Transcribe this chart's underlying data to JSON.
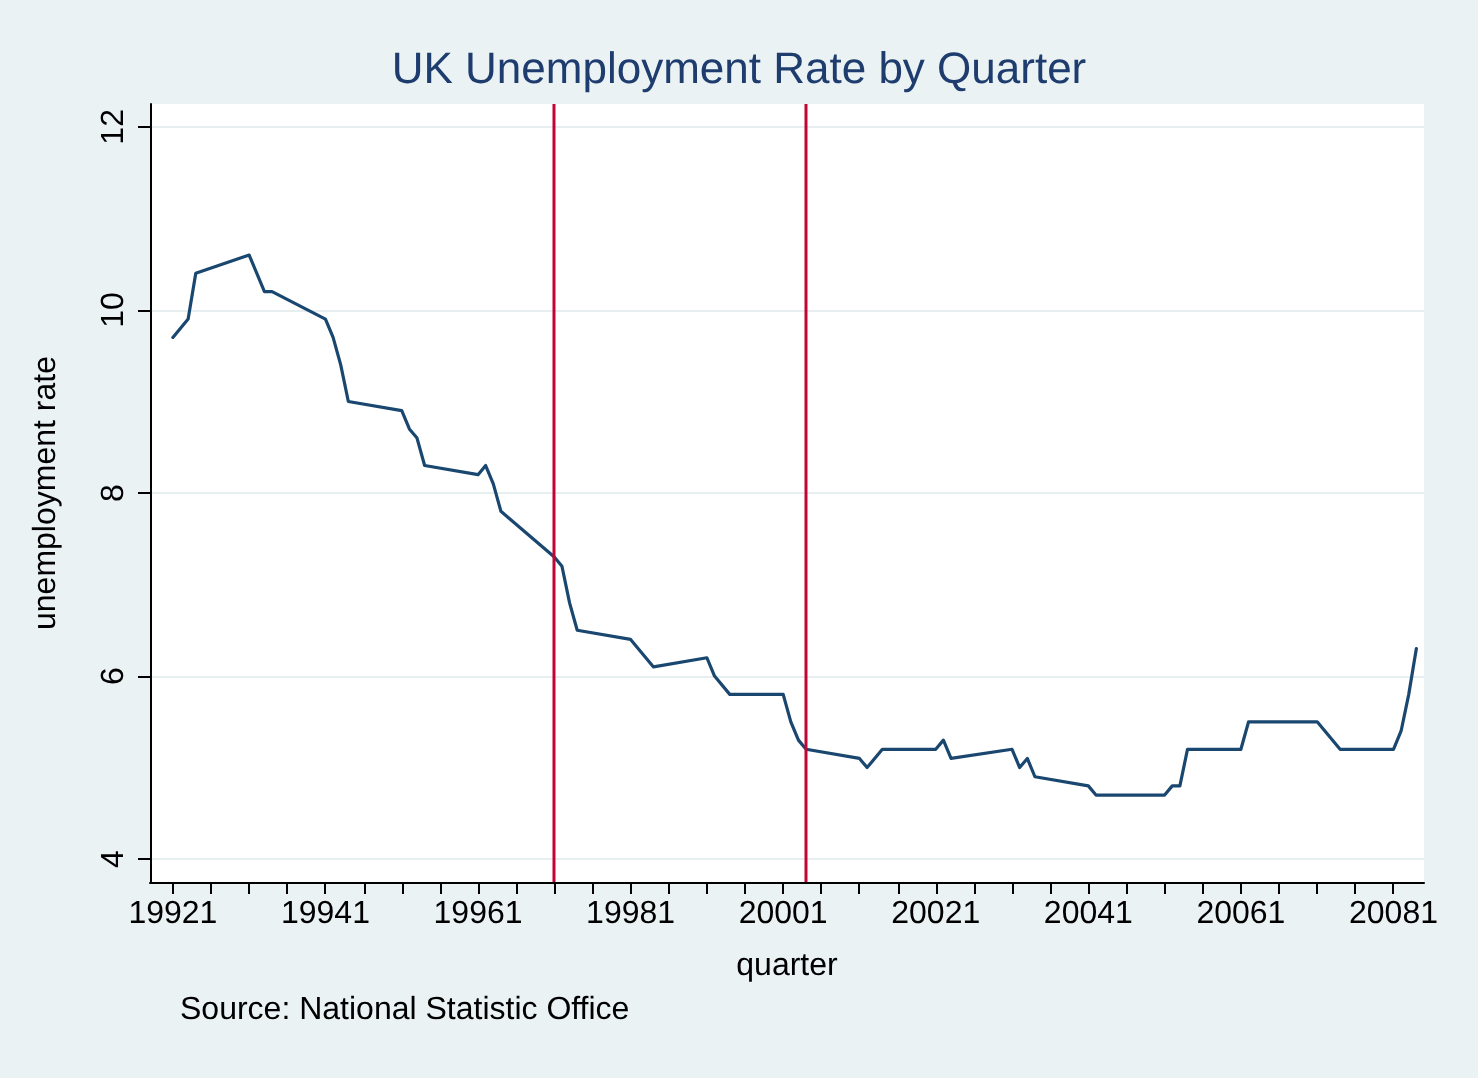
{
  "chart_data": {
    "type": "line",
    "title": "UK Unemployment Rate by Quarter",
    "xlabel": "quarter",
    "ylabel": "unemployment rate",
    "annotations": [
      "Source: National Statistic Office"
    ],
    "x": [
      19921,
      19923,
      19924,
      19931,
      19933,
      19934,
      19941,
      19942,
      19943,
      19944,
      19951,
      19952,
      19953,
      19954,
      19961,
      19962,
      19963,
      19964,
      19971,
      19972,
      19973,
      19974,
      19981,
      19984,
      19991,
      19992,
      19994,
      20001,
      20002,
      20003,
      20004,
      20011,
      20012,
      20014,
      20021,
      20022,
      20023,
      20031,
      20032,
      20033,
      20034,
      20041,
      20042,
      20051,
      20052,
      20053,
      20054,
      20061,
      20062,
      20071,
      20074,
      20081,
      20082,
      20083,
      20084
    ],
    "series": [
      {
        "color": "#1a476f",
        "values": [
          9.7,
          9.9,
          10.4,
          10.6,
          10.2,
          10.2,
          9.9,
          9.7,
          9.4,
          9.0,
          8.9,
          8.7,
          8.6,
          8.3,
          8.2,
          8.3,
          8.1,
          7.8,
          7.3,
          7.2,
          6.8,
          6.5,
          6.4,
          6.1,
          6.2,
          6.0,
          5.8,
          5.8,
          5.5,
          5.3,
          5.2,
          5.1,
          5.0,
          5.2,
          5.2,
          5.3,
          5.1,
          5.2,
          5.0,
          5.1,
          4.9,
          4.8,
          4.7,
          4.7,
          4.8,
          4.8,
          5.2,
          5.2,
          5.5,
          5.5,
          5.2,
          5.2,
          5.4,
          5.8,
          6.3
        ]
      }
    ],
    "xlim": [
      19918,
      20085
    ],
    "xticks": [
      19921,
      {
        "value": 19926,
        "label": null
      },
      {
        "value": 19931,
        "label": null
      },
      {
        "value": 19936,
        "label": null
      },
      19941,
      {
        "value": 19946,
        "label": null
      },
      {
        "value": 19951,
        "label": null
      },
      {
        "value": 19956,
        "label": null
      },
      19961,
      {
        "value": 19966,
        "label": null
      },
      {
        "value": 19971,
        "label": null
      },
      {
        "value": 19976,
        "label": null
      },
      19981,
      {
        "value": 19986,
        "label": null
      },
      {
        "value": 19991,
        "label": null
      },
      {
        "value": 19996,
        "label": null
      },
      20001,
      {
        "value": 20006,
        "label": null
      },
      {
        "value": 20011,
        "label": null
      },
      {
        "value": 20016,
        "label": null
      },
      20021,
      {
        "value": 20026,
        "label": null
      },
      {
        "value": 20031,
        "label": null
      },
      {
        "value": 20036,
        "label": null
      },
      20041,
      {
        "value": 20046,
        "label": null
      },
      {
        "value": 20051,
        "label": null
      },
      {
        "value": 20056,
        "label": null
      },
      20061,
      {
        "value": 20066,
        "label": null
      },
      {
        "value": 20071,
        "label": null
      },
      {
        "value": 20076,
        "label": null
      },
      20081
    ],
    "ylim": [
      3.75,
      12.25
    ],
    "yticks": [
      4,
      6,
      8,
      10,
      12
    ],
    "grid": "y",
    "marker": "none",
    "line_style": "solid",
    "ref_lines": [
      {
        "axis": "x",
        "value": 19971,
        "color": "#c10534"
      },
      {
        "axis": "x",
        "value": 20004,
        "color": "#c10534"
      }
    ]
  }
}
